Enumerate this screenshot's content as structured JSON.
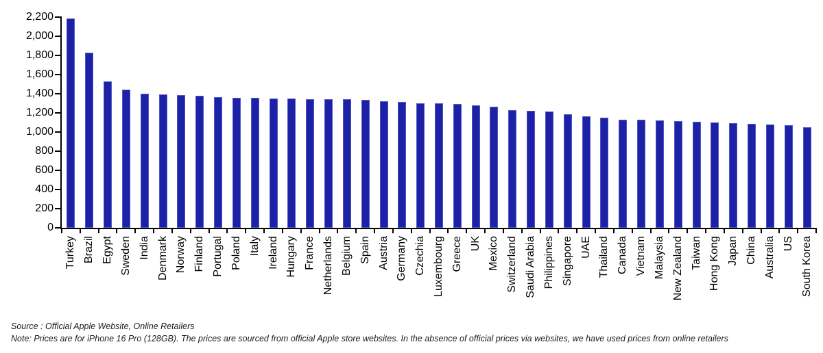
{
  "chart_data": {
    "type": "bar",
    "title": "",
    "xlabel": "",
    "ylabel": "",
    "grid": false,
    "legend": "none",
    "ylim": [
      0,
      2200
    ],
    "y_tick_values": [
      0,
      200,
      400,
      600,
      800,
      1000,
      1200,
      1400,
      1600,
      1800,
      2000,
      2200
    ],
    "y_tick_labels": [
      "0",
      "200",
      "400",
      "600",
      "800",
      "1,000",
      "1,200",
      "1,400",
      "1,600",
      "1,800",
      "2,000",
      "2,200"
    ],
    "categories": [
      "Turkey",
      "Brazil",
      "Egypt",
      "Sweden",
      "India",
      "Denmark",
      "Norway",
      "Finland",
      "Portugal",
      "Poland",
      "Italy",
      "Ireland",
      "Hungary",
      "France",
      "Netherlands",
      "Belgium",
      "Spain",
      "Austria",
      "Germany",
      "Czechia",
      "Luxembourg",
      "Greece",
      "UK",
      "Mexico",
      "Switzerland",
      "Saudi Arabia",
      "Philippines",
      "Singapore",
      "UAE",
      "Thailand",
      "Canada",
      "Vietnam",
      "Malaysia",
      "New Zealand",
      "Taiwan",
      "Hong Kong",
      "Japan",
      "China",
      "Australia",
      "US",
      "South Korea"
    ],
    "values": [
      2185,
      1830,
      1525,
      1440,
      1397,
      1392,
      1388,
      1375,
      1367,
      1358,
      1354,
      1352,
      1347,
      1345,
      1344,
      1341,
      1334,
      1320,
      1311,
      1303,
      1299,
      1296,
      1281,
      1261,
      1226,
      1219,
      1212,
      1188,
      1166,
      1151,
      1131,
      1126,
      1122,
      1112,
      1108,
      1101,
      1096,
      1086,
      1078,
      1072,
      1052
    ],
    "bar_color": "#1C21A5",
    "bar_edge_color": "#5058C8",
    "axis_color": "#000000"
  },
  "footer": {
    "source": "Source : Official Apple Website, Online Retailers",
    "note": "Note: Prices are for iPhone 16 Pro (128GB). The prices are sourced from official Apple store websites. In the absence of official prices via websites, we have used prices from online retailers"
  }
}
